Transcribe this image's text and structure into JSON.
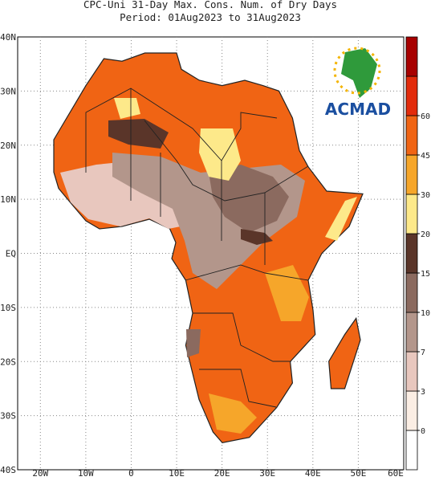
{
  "header": {
    "title": "CPC-Uni 31-Day Max. Cons. Num. of Dry Days",
    "subtitle": "Period: 01Aug2023 to 31Aug2023"
  },
  "map": {
    "lat_labels": [
      "40N",
      "30N",
      "20N",
      "10N",
      "EQ",
      "10S",
      "20S",
      "30S",
      "40S"
    ],
    "lon_labels": [
      "20W",
      "10W",
      "0",
      "10E",
      "20E",
      "30E",
      "40E",
      "50E",
      "60E"
    ]
  },
  "colorbar": {
    "levels": [
      0,
      3,
      7,
      10,
      15,
      20,
      30,
      45,
      60
    ],
    "colors": [
      "#ffffff",
      "#fbeee4",
      "#e8c7be",
      "#b3968b",
      "#8b6a5f",
      "#5a3529",
      "#fde98a",
      "#f6a62a",
      "#f06414",
      "#e22b0b",
      "#a70000"
    ]
  },
  "logo": {
    "text": "ACMAD"
  }
}
